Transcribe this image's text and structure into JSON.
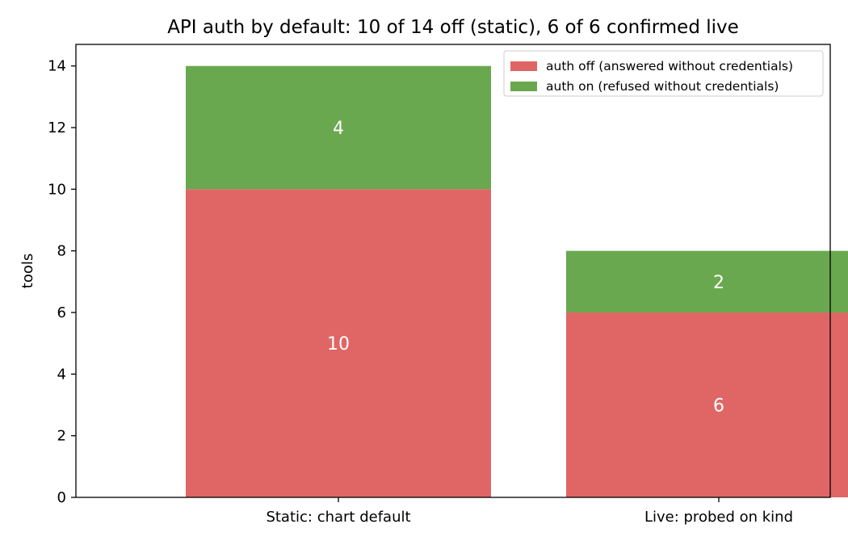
{
  "chart_data": {
    "type": "bar",
    "stacked": true,
    "title": "API auth by default: 10 of 14 off (static), 6 of 6 confirmed live",
    "xlabel": "",
    "ylabel": "tools",
    "categories": [
      "Static: chart default",
      "Live: probed on kind"
    ],
    "series": [
      {
        "name": "auth off (answered without credentials)",
        "values": [
          10,
          6
        ],
        "color": "#e06666"
      },
      {
        "name": "auth on (refused without credentials)",
        "values": [
          4,
          2
        ],
        "color": "#6aa84f"
      }
    ],
    "ylim": [
      0,
      14.7
    ],
    "yticks": [
      0,
      2,
      4,
      6,
      8,
      10,
      12,
      14
    ],
    "legend": "top-right",
    "grid": false,
    "bar_labels": true,
    "bar_label_color": "#ffffff"
  }
}
